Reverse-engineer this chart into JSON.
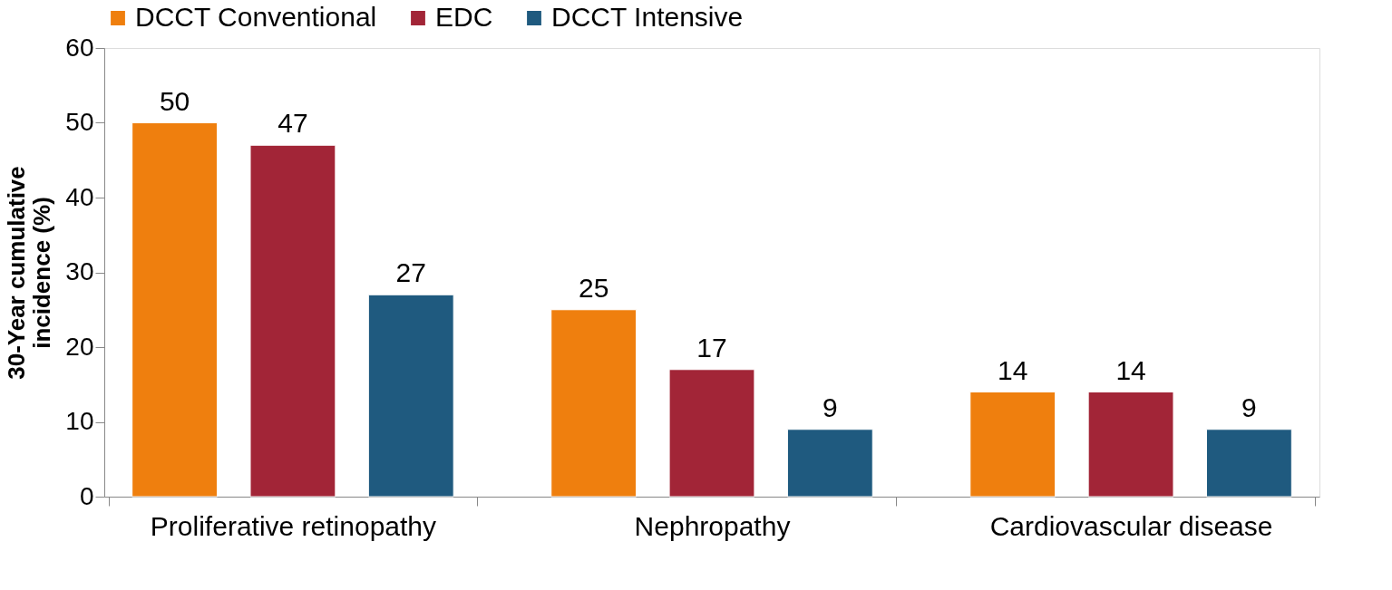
{
  "chart_data": {
    "type": "bar",
    "ylabel": "30-Year cumulative incidence (%)",
    "categories": [
      "Proliferative retinopathy",
      "Nephropathy",
      "Cardiovascular disease"
    ],
    "series": [
      {
        "name": "DCCT Conventional",
        "color": "#ef7f0e",
        "values": [
          50,
          25,
          14
        ]
      },
      {
        "name": "EDC",
        "color": "#a22537",
        "values": [
          47,
          17,
          14
        ]
      },
      {
        "name": "DCCT Intensive",
        "color": "#1f5a7f",
        "values": [
          27,
          9,
          9
        ]
      }
    ],
    "ylim": [
      0,
      60
    ],
    "yticks": [
      0,
      10,
      20,
      30,
      40,
      50,
      60
    ],
    "grid": false,
    "legend": "top",
    "data_labels": true
  }
}
